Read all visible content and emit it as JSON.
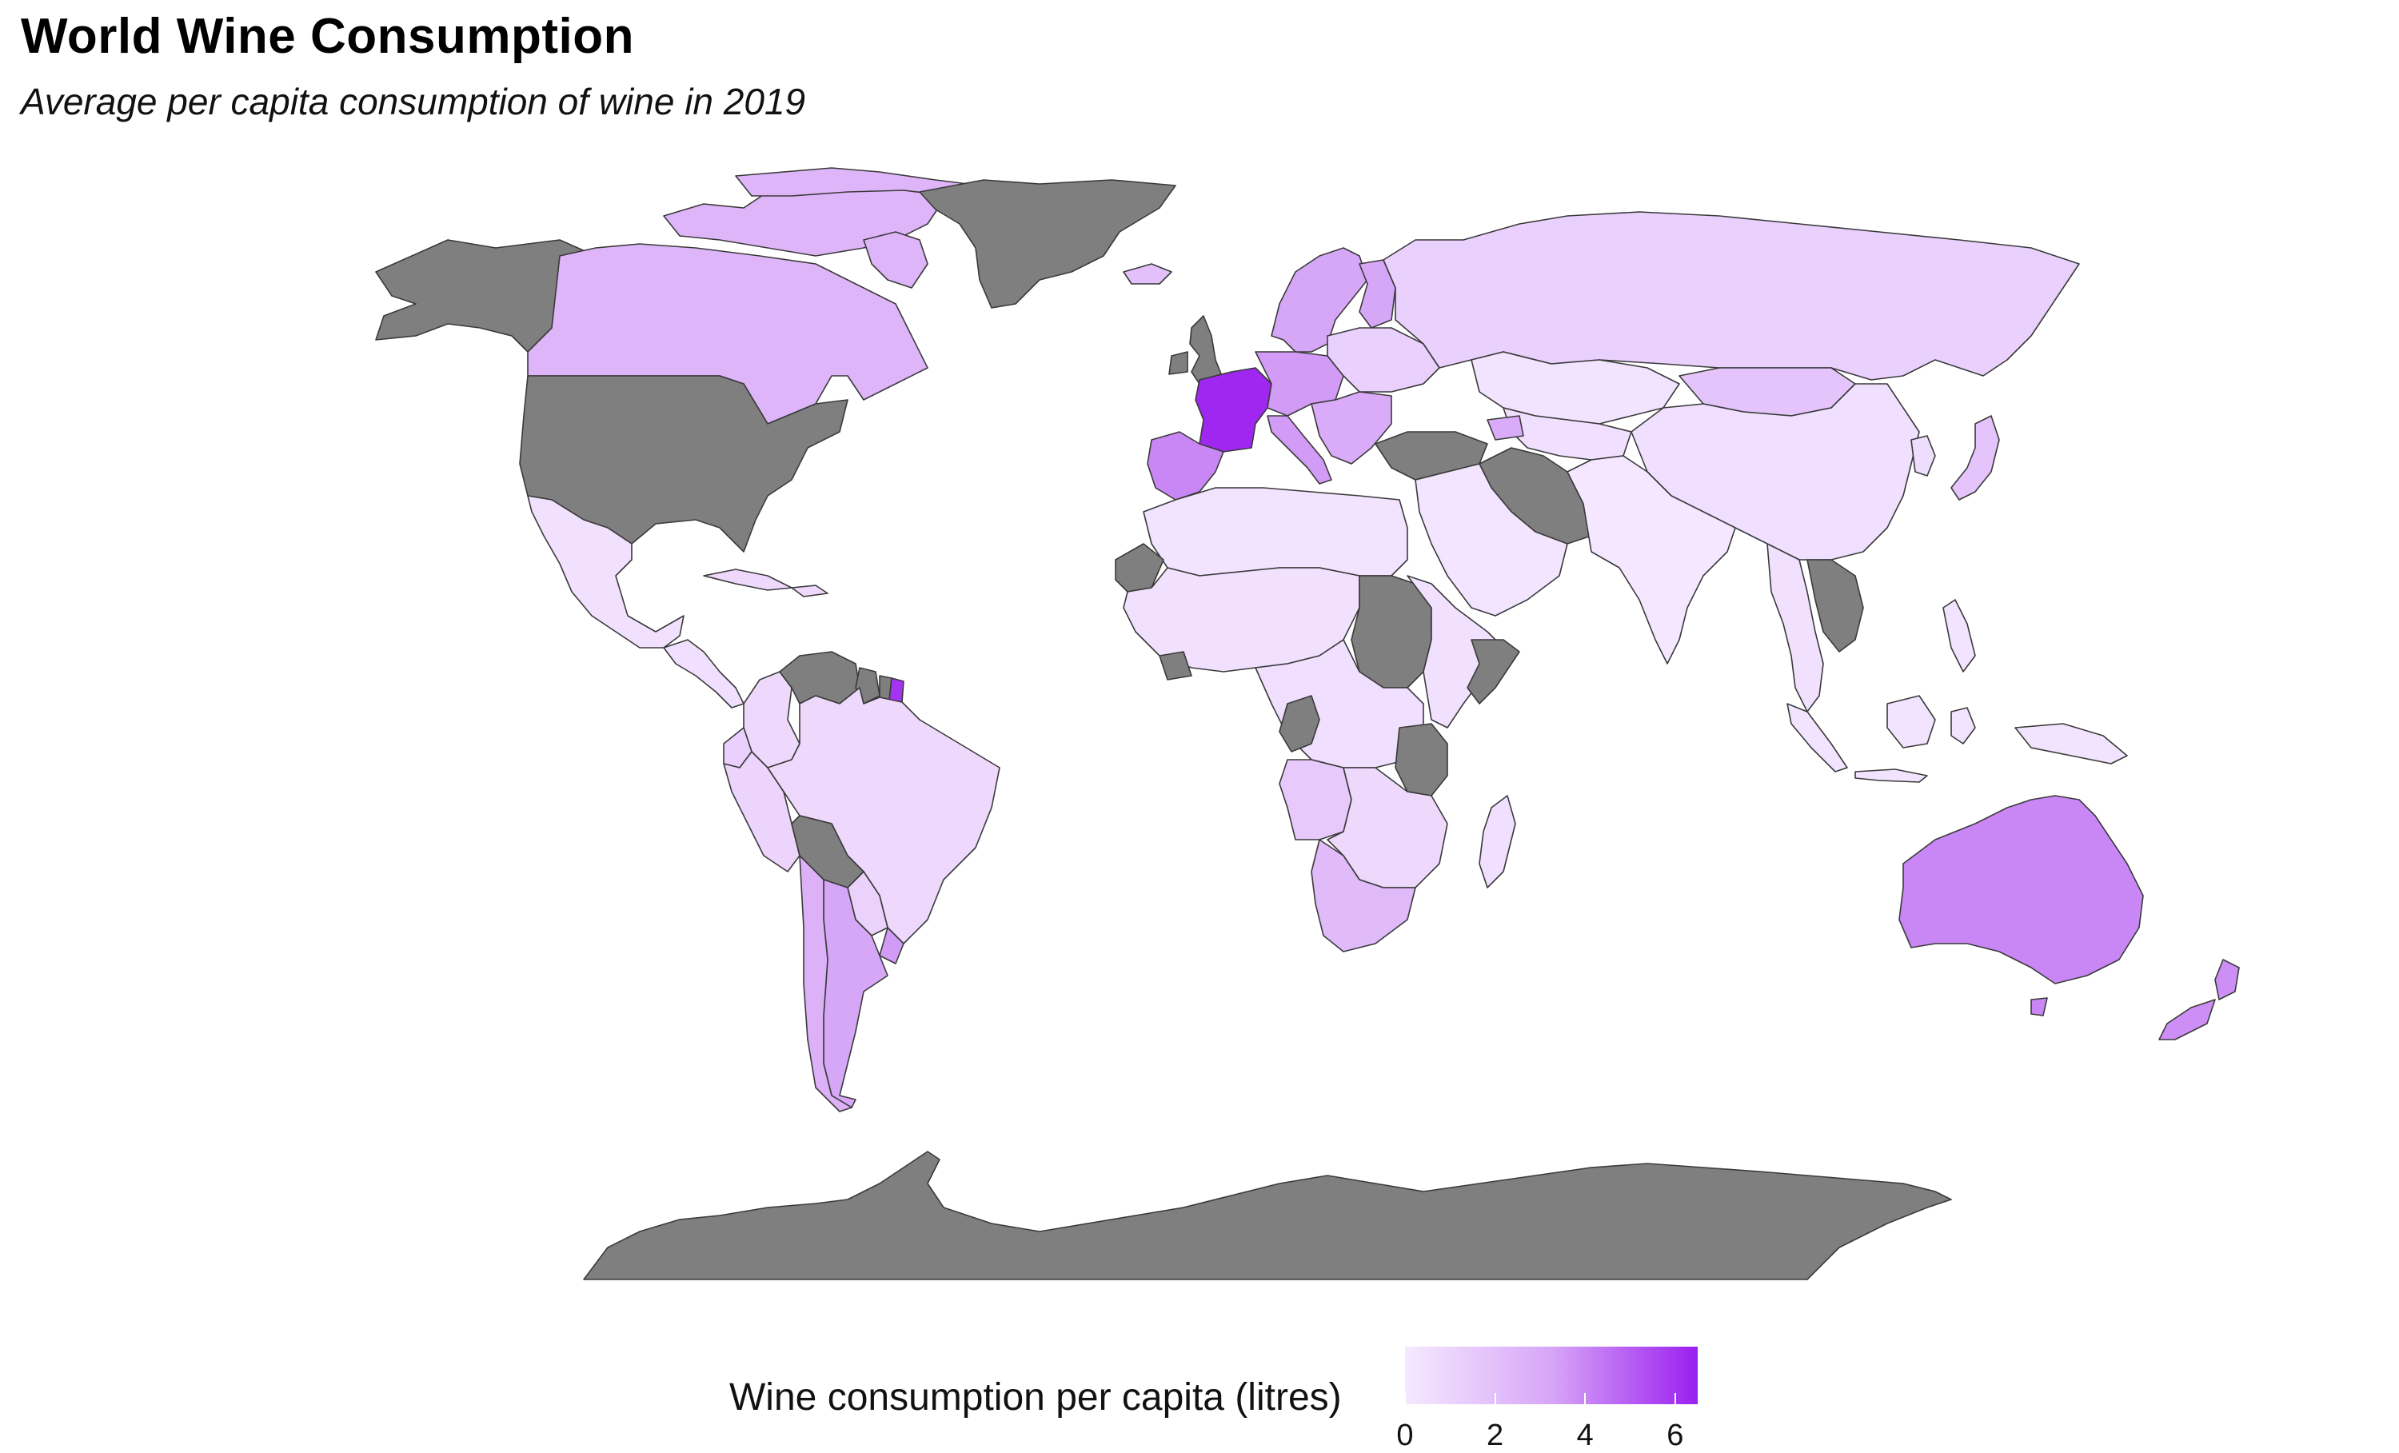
{
  "title": "World Wine Consumption",
  "subtitle": "Average per capita consumption of wine in 2019",
  "colors": {
    "no_data": "#7f7f7f",
    "scale_low": "#f5e9ff",
    "scale_mid": "#d7a6f7",
    "scale_high": "#9b1ff0",
    "border": "#3a3a3a",
    "background": "#ffffff"
  },
  "legend": {
    "title": "Wine consumption per capita (litres)",
    "ticks": [
      "0",
      "2",
      "4",
      "6"
    ],
    "tick_values": [
      0,
      2,
      4,
      6
    ],
    "range": [
      0,
      6.5
    ]
  },
  "regions": [
    {
      "name": "Canada",
      "value": 2.5
    },
    {
      "name": "United States",
      "value": null
    },
    {
      "name": "Alaska",
      "value": null
    },
    {
      "name": "Greenland",
      "value": null
    },
    {
      "name": "Mexico",
      "value": 0.4
    },
    {
      "name": "Central America",
      "value": 0.5
    },
    {
      "name": "Caribbean",
      "value": 0.8
    },
    {
      "name": "Venezuela",
      "value": null
    },
    {
      "name": "Guyana",
      "value": null
    },
    {
      "name": "Suriname",
      "value": null
    },
    {
      "name": "French Guiana",
      "value": 6.0
    },
    {
      "name": "Colombia",
      "value": 0.8
    },
    {
      "name": "Ecuador",
      "value": 1.2
    },
    {
      "name": "Peru",
      "value": 1.0
    },
    {
      "name": "Brazil",
      "value": 0.8
    },
    {
      "name": "Bolivia",
      "value": null
    },
    {
      "name": "Paraguay",
      "value": 1.1
    },
    {
      "name": "Chile",
      "value": 2.7
    },
    {
      "name": "Argentina",
      "value": 3.2
    },
    {
      "name": "Uruguay",
      "value": 3.5
    },
    {
      "name": "France",
      "value": 6.3
    },
    {
      "name": "Iberia",
      "value": 4.0
    },
    {
      "name": "United Kingdom",
      "value": null
    },
    {
      "name": "Iceland",
      "value": 2.0
    },
    {
      "name": "Scandinavia",
      "value": 3.2
    },
    {
      "name": "Central Europe",
      "value": 3.5
    },
    {
      "name": "Eastern Europe",
      "value": 1.2
    },
    {
      "name": "Balkans",
      "value": 3.0
    },
    {
      "name": "Russia",
      "value": 1.2
    },
    {
      "name": "Kazakhstan",
      "value": 0.3
    },
    {
      "name": "Central Asia",
      "value": 0.5
    },
    {
      "name": "Mongolia",
      "value": 1.8
    },
    {
      "name": "China",
      "value": 0.5
    },
    {
      "name": "Korea",
      "value": 0.6
    },
    {
      "name": "Japan",
      "value": 1.8
    },
    {
      "name": "Turkey and Syria",
      "value": null
    },
    {
      "name": "Iran",
      "value": null
    },
    {
      "name": "Middle East",
      "value": 0.2
    },
    {
      "name": "South Asia",
      "value": 0.1
    },
    {
      "name": "Southeast Asia",
      "value": 0.4
    },
    {
      "name": "Indochina",
      "value": null
    },
    {
      "name": "Indonesia",
      "value": 0.3
    },
    {
      "name": "Philippines",
      "value": 0.3
    },
    {
      "name": "Papua New Guinea",
      "value": 0.3
    },
    {
      "name": "North Africa",
      "value": 0.3
    },
    {
      "name": "West Africa",
      "value": 0.4
    },
    {
      "name": "Western Sahara",
      "value": null
    },
    {
      "name": "Sudan",
      "value": null
    },
    {
      "name": "East Africa",
      "value": 0.4
    },
    {
      "name": "Somalia",
      "value": null
    },
    {
      "name": "Central Africa",
      "value": 0.5
    },
    {
      "name": "Congo",
      "value": null
    },
    {
      "name": "Tanzania",
      "value": null
    },
    {
      "name": "Angola",
      "value": 1.5
    },
    {
      "name": "Southern Africa",
      "value": 0.8
    },
    {
      "name": "South Africa",
      "value": 2.3
    },
    {
      "name": "Madagascar",
      "value": 0.5
    },
    {
      "name": "Australia",
      "value": 4.0
    },
    {
      "name": "New Zealand",
      "value": 3.8
    },
    {
      "name": "Antarctica",
      "value": null
    }
  ]
}
